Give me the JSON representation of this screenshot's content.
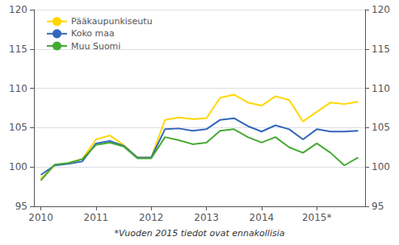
{
  "chart_data": {
    "type": "line",
    "footnote": "*Vuoden 2015 tiedot ovat ennakollisia",
    "categories": [
      "2010",
      null,
      null,
      null,
      "2011",
      null,
      null,
      null,
      "2012",
      null,
      null,
      null,
      "2013",
      null,
      null,
      null,
      "2014",
      null,
      null,
      null,
      "2015*",
      null,
      null,
      null
    ],
    "series": [
      {
        "name": "Pääkaupunkiseutu",
        "color": "#FFD700",
        "values": [
          98.5,
          100.2,
          100.5,
          101.0,
          103.5,
          104.0,
          102.8,
          101.2,
          101.2,
          106.0,
          106.3,
          106.1,
          106.2,
          108.8,
          109.2,
          108.2,
          107.8,
          109.0,
          108.5,
          105.8,
          107.0,
          108.2,
          108.0,
          108.3
        ]
      },
      {
        "name": "Koko maa",
        "color": "#3366BB",
        "values": [
          99.0,
          100.2,
          100.4,
          100.7,
          103.0,
          103.3,
          102.7,
          101.2,
          101.2,
          104.8,
          104.9,
          104.6,
          104.8,
          106.0,
          106.2,
          105.2,
          104.5,
          105.3,
          104.8,
          103.5,
          104.8,
          104.5,
          104.5,
          104.6
        ]
      },
      {
        "name": "Muu Suomi",
        "color": "#44AA33",
        "values": [
          98.3,
          100.3,
          100.5,
          101.0,
          102.8,
          103.1,
          102.6,
          101.1,
          101.1,
          103.8,
          103.4,
          102.9,
          103.1,
          104.6,
          104.8,
          103.8,
          103.1,
          103.8,
          102.5,
          101.8,
          103.0,
          101.8,
          100.2,
          101.2
        ]
      }
    ],
    "ylim": [
      95,
      120
    ],
    "yticks": [
      95,
      100,
      105,
      110,
      115,
      120
    ],
    "y2lim": [
      95,
      120
    ],
    "y2ticks": [
      95,
      100,
      105,
      110,
      115,
      120
    ],
    "grid": true,
    "legend": "upper left"
  }
}
